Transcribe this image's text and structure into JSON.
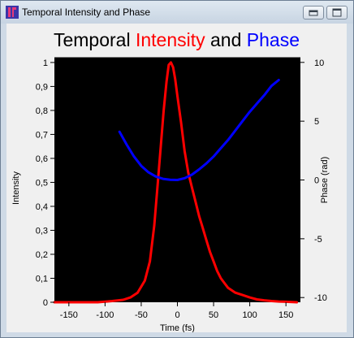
{
  "window": {
    "title": "Temporal Intensity and Phase",
    "icon": "app-icon",
    "buttons": [
      "minimize-icon",
      "maximize-icon"
    ]
  },
  "chart_data": {
    "type": "line",
    "title_parts": [
      {
        "text": "Temporal ",
        "color": "#000000"
      },
      {
        "text": "Intensity",
        "color": "#ff0000"
      },
      {
        "text": " and ",
        "color": "#000000"
      },
      {
        "text": "Phase",
        "color": "#0000ff"
      }
    ],
    "xlabel": "Time (fs)",
    "ylabel_left": "Intensity",
    "ylabel_right": "Phase (rad)",
    "xlim": [
      -170,
      170
    ],
    "ylim_left": [
      0,
      1.02
    ],
    "ylim_right": [
      -10.4,
      10.4
    ],
    "x_ticks": [
      "-150",
      "-100",
      "-50",
      "0",
      "50",
      "100",
      "150"
    ],
    "y_left_ticks": [
      "0",
      "0,1",
      "0,2",
      "0,3",
      "0,4",
      "0,5",
      "0,6",
      "0,7",
      "0,8",
      "0,9",
      "1"
    ],
    "y_right_ticks": [
      "-10",
      "-5",
      "0",
      "5",
      "10"
    ],
    "background": "#000000",
    "grid": false,
    "series": [
      {
        "color": "#ff0000",
        "axis": "left",
        "x": [
          -170,
          -110,
          -90,
          -75,
          -65,
          -55,
          -45,
          -38,
          -32,
          -27,
          -23,
          -19,
          -15,
          -12,
          -9,
          -6,
          -3,
          0,
          5,
          10,
          15,
          20,
          25,
          30,
          35,
          40,
          45,
          50,
          55,
          60,
          65,
          70,
          80,
          90,
          100,
          110,
          120,
          130,
          140,
          150,
          165
        ],
        "values": [
          0.0,
          0.0,
          0.005,
          0.01,
          0.02,
          0.04,
          0.09,
          0.17,
          0.32,
          0.5,
          0.65,
          0.8,
          0.92,
          0.99,
          1.0,
          0.98,
          0.93,
          0.86,
          0.75,
          0.63,
          0.54,
          0.48,
          0.42,
          0.36,
          0.31,
          0.26,
          0.21,
          0.17,
          0.13,
          0.1,
          0.08,
          0.06,
          0.04,
          0.03,
          0.02,
          0.012,
          0.008,
          0.005,
          0.003,
          0.002,
          0.0
        ]
      },
      {
        "color": "#0000ff",
        "axis": "right",
        "x": [
          -80,
          -70,
          -60,
          -50,
          -40,
          -30,
          -20,
          -10,
          0,
          10,
          20,
          30,
          40,
          50,
          60,
          70,
          80,
          90,
          100,
          110,
          120,
          130,
          140
        ],
        "values": [
          4.1,
          3.0,
          2.0,
          1.2,
          0.65,
          0.3,
          0.1,
          0.02,
          0.0,
          0.15,
          0.45,
          0.9,
          1.4,
          2.0,
          2.7,
          3.4,
          4.2,
          5.0,
          5.8,
          6.5,
          7.2,
          8.0,
          8.5
        ]
      }
    ]
  }
}
